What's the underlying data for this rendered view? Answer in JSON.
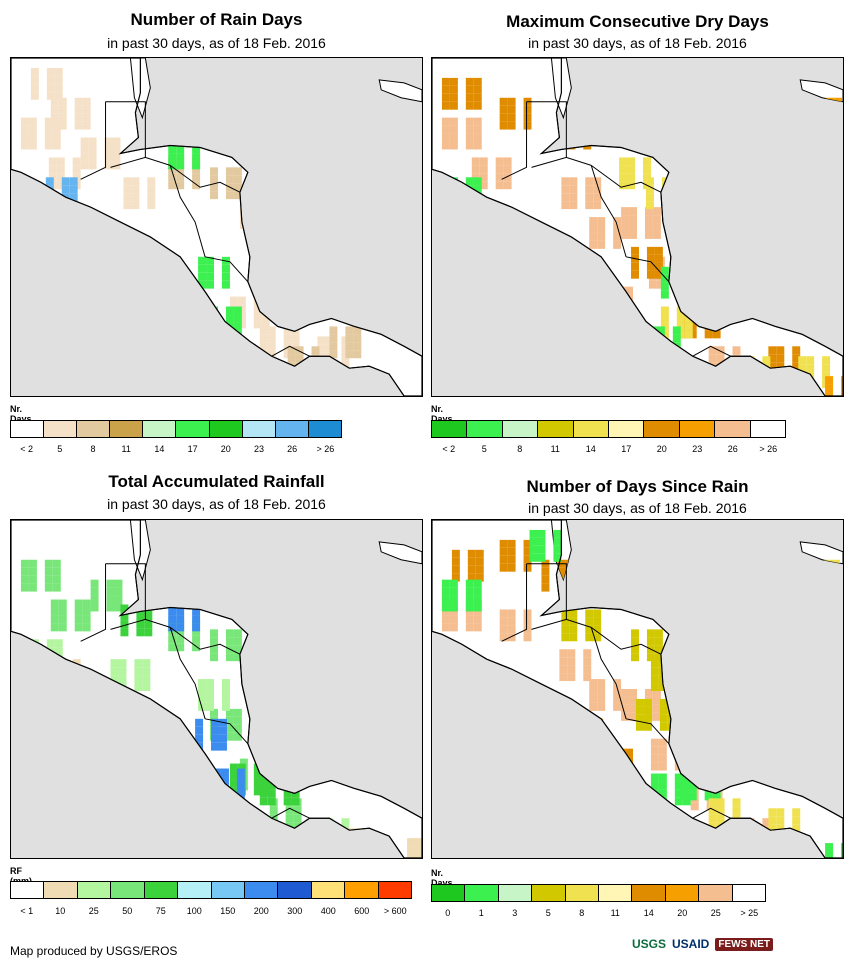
{
  "panels": {
    "rain_days": {
      "title": "Number of Rain Days",
      "subtitle": "in past 30 days, as of 18 Feb. 2016",
      "legend_title": "Nr. Days",
      "legend_colors": [
        "#ffffff",
        "#f5e1c8",
        "#e2c9a0",
        "#c9a24a",
        "#c8f5c8",
        "#3cf050",
        "#1ec81e",
        "#b4e6f5",
        "#64b4f0",
        "#1e8cd2"
      ],
      "legend_labels": [
        "< 2",
        "5",
        "8",
        "11",
        "14",
        "17",
        "20",
        "23",
        "26",
        "> 26"
      ]
    },
    "dry_days": {
      "title": "Maximum Consecutive Dry Days",
      "subtitle": "in past 30 days, as of 18 Feb. 2016",
      "legend_title": "Nr. Days",
      "legend_colors": [
        "#1ec81e",
        "#3cf050",
        "#c8f5c8",
        "#d2c800",
        "#f0e150",
        "#fff5b4",
        "#e08c00",
        "#f5a000",
        "#f5be91",
        "#ffffff"
      ],
      "legend_labels": [
        "< 2",
        "5",
        "8",
        "11",
        "14",
        "17",
        "20",
        "23",
        "26",
        "> 26"
      ]
    },
    "rainfall": {
      "title": "Total Accumulated Rainfall",
      "subtitle": "in past 30 days, as of 18 Feb. 2016",
      "legend_title": "RF (mm)",
      "legend_colors": [
        "#ffffff",
        "#f0dcb4",
        "#b4f5a0",
        "#78e678",
        "#3cd23c",
        "#b4f0f5",
        "#78c8f5",
        "#3c8cf0",
        "#1e5ad2",
        "#ffe178",
        "#ffa000",
        "#ff3c00"
      ],
      "legend_labels": [
        "< 1",
        "10",
        "25",
        "50",
        "75",
        "100",
        "150",
        "200",
        "300",
        "400",
        "600",
        "> 600"
      ]
    },
    "since_rain": {
      "title": "Number of Days Since Rain",
      "subtitle": "in past 30 days, as of 18 Feb. 2016",
      "legend_title": "Nr. Days",
      "legend_colors": [
        "#1ec81e",
        "#3cf050",
        "#c8f5c8",
        "#d2c800",
        "#f0e150",
        "#fff5b4",
        "#e08c00",
        "#f5a000",
        "#f5be91",
        "#ffffff"
      ],
      "legend_labels": [
        "0",
        "1",
        "3",
        "5",
        "8",
        "11",
        "14",
        "20",
        "25",
        "> 25"
      ]
    }
  },
  "footer": {
    "credit": "Map produced by USGS/EROS",
    "logos": [
      "USGS",
      "USAID",
      "FEWS NET"
    ]
  },
  "colors": {
    "ocean": "#e0e0e0",
    "land": "#ffffff",
    "border": "#000000"
  }
}
